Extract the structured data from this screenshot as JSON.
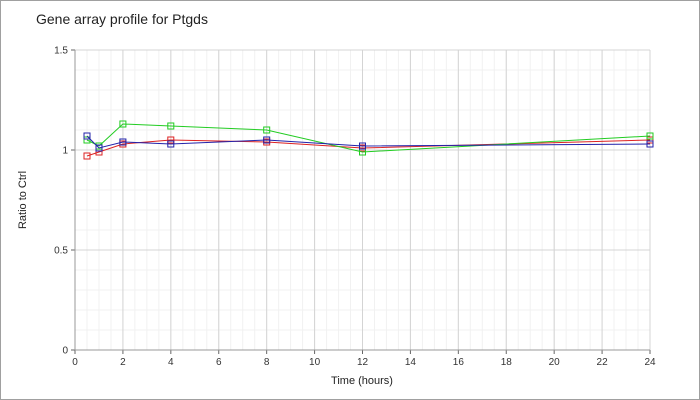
{
  "chart_data": {
    "type": "line",
    "title": "Gene array profile for Ptgds",
    "xlabel": "Time (hours)",
    "ylabel": "Ratio to Ctrl",
    "xlim": [
      0,
      24
    ],
    "ylim": [
      0,
      1.5
    ],
    "x_ticks": [
      0,
      2,
      4,
      6,
      8,
      10,
      12,
      14,
      16,
      18,
      20,
      22,
      24
    ],
    "y_ticks": [
      0,
      0.5,
      1,
      1.5
    ],
    "y_tick_labels": [
      "0",
      "0.5",
      "1",
      "1.5"
    ],
    "grid": true,
    "legend": "none",
    "marker": "square",
    "series": [
      {
        "color": "#dd2222",
        "x": [
          0.5,
          1,
          2,
          4,
          8,
          12,
          24
        ],
        "y": [
          0.97,
          0.99,
          1.03,
          1.05,
          1.04,
          1.01,
          1.05
        ]
      },
      {
        "color": "#22cc22",
        "x": [
          0.5,
          1,
          2,
          4,
          8,
          12,
          24
        ],
        "y": [
          1.05,
          1.02,
          1.13,
          1.12,
          1.1,
          0.99,
          1.07
        ]
      },
      {
        "color": "#2222aa",
        "x": [
          0.5,
          1,
          2,
          4,
          8,
          12,
          24
        ],
        "y": [
          1.07,
          1.01,
          1.04,
          1.03,
          1.05,
          1.02,
          1.03
        ]
      }
    ]
  }
}
